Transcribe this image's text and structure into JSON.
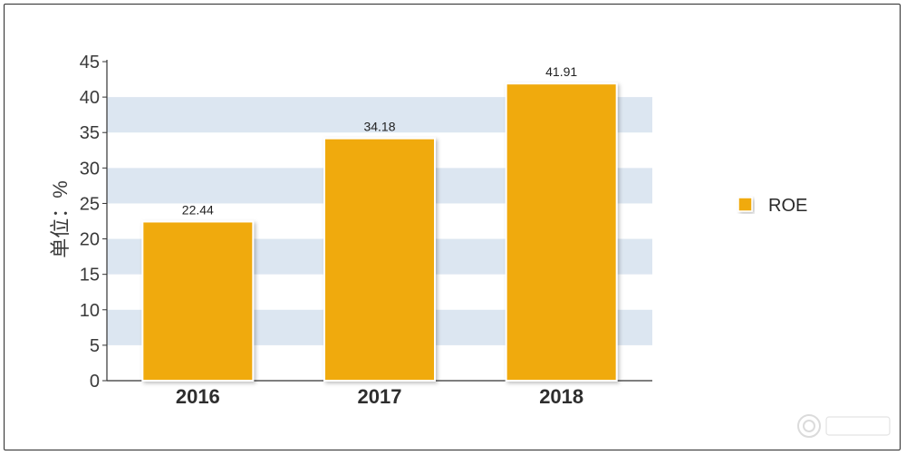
{
  "chart_data": {
    "type": "bar",
    "categories": [
      "2016",
      "2017",
      "2018"
    ],
    "series": [
      {
        "name": "ROE",
        "values": [
          22.44,
          34.18,
          41.91
        ]
      }
    ],
    "data_labels": [
      "22.44",
      "34.18",
      "41.91"
    ],
    "ylabel": "单位：%",
    "xlabel": "",
    "title": "",
    "ylim": [
      0,
      45
    ],
    "yticks": [
      0,
      5,
      10,
      15,
      20,
      25,
      30,
      35,
      40,
      45
    ],
    "grid": "alternating horizontal bands",
    "legend_position": "right",
    "colors": {
      "bar": "#F0AA0E",
      "bar_outline": "#ffffff",
      "band": "#DCE6F1",
      "axis": "#333333",
      "frame": "#2b2b2b"
    }
  }
}
